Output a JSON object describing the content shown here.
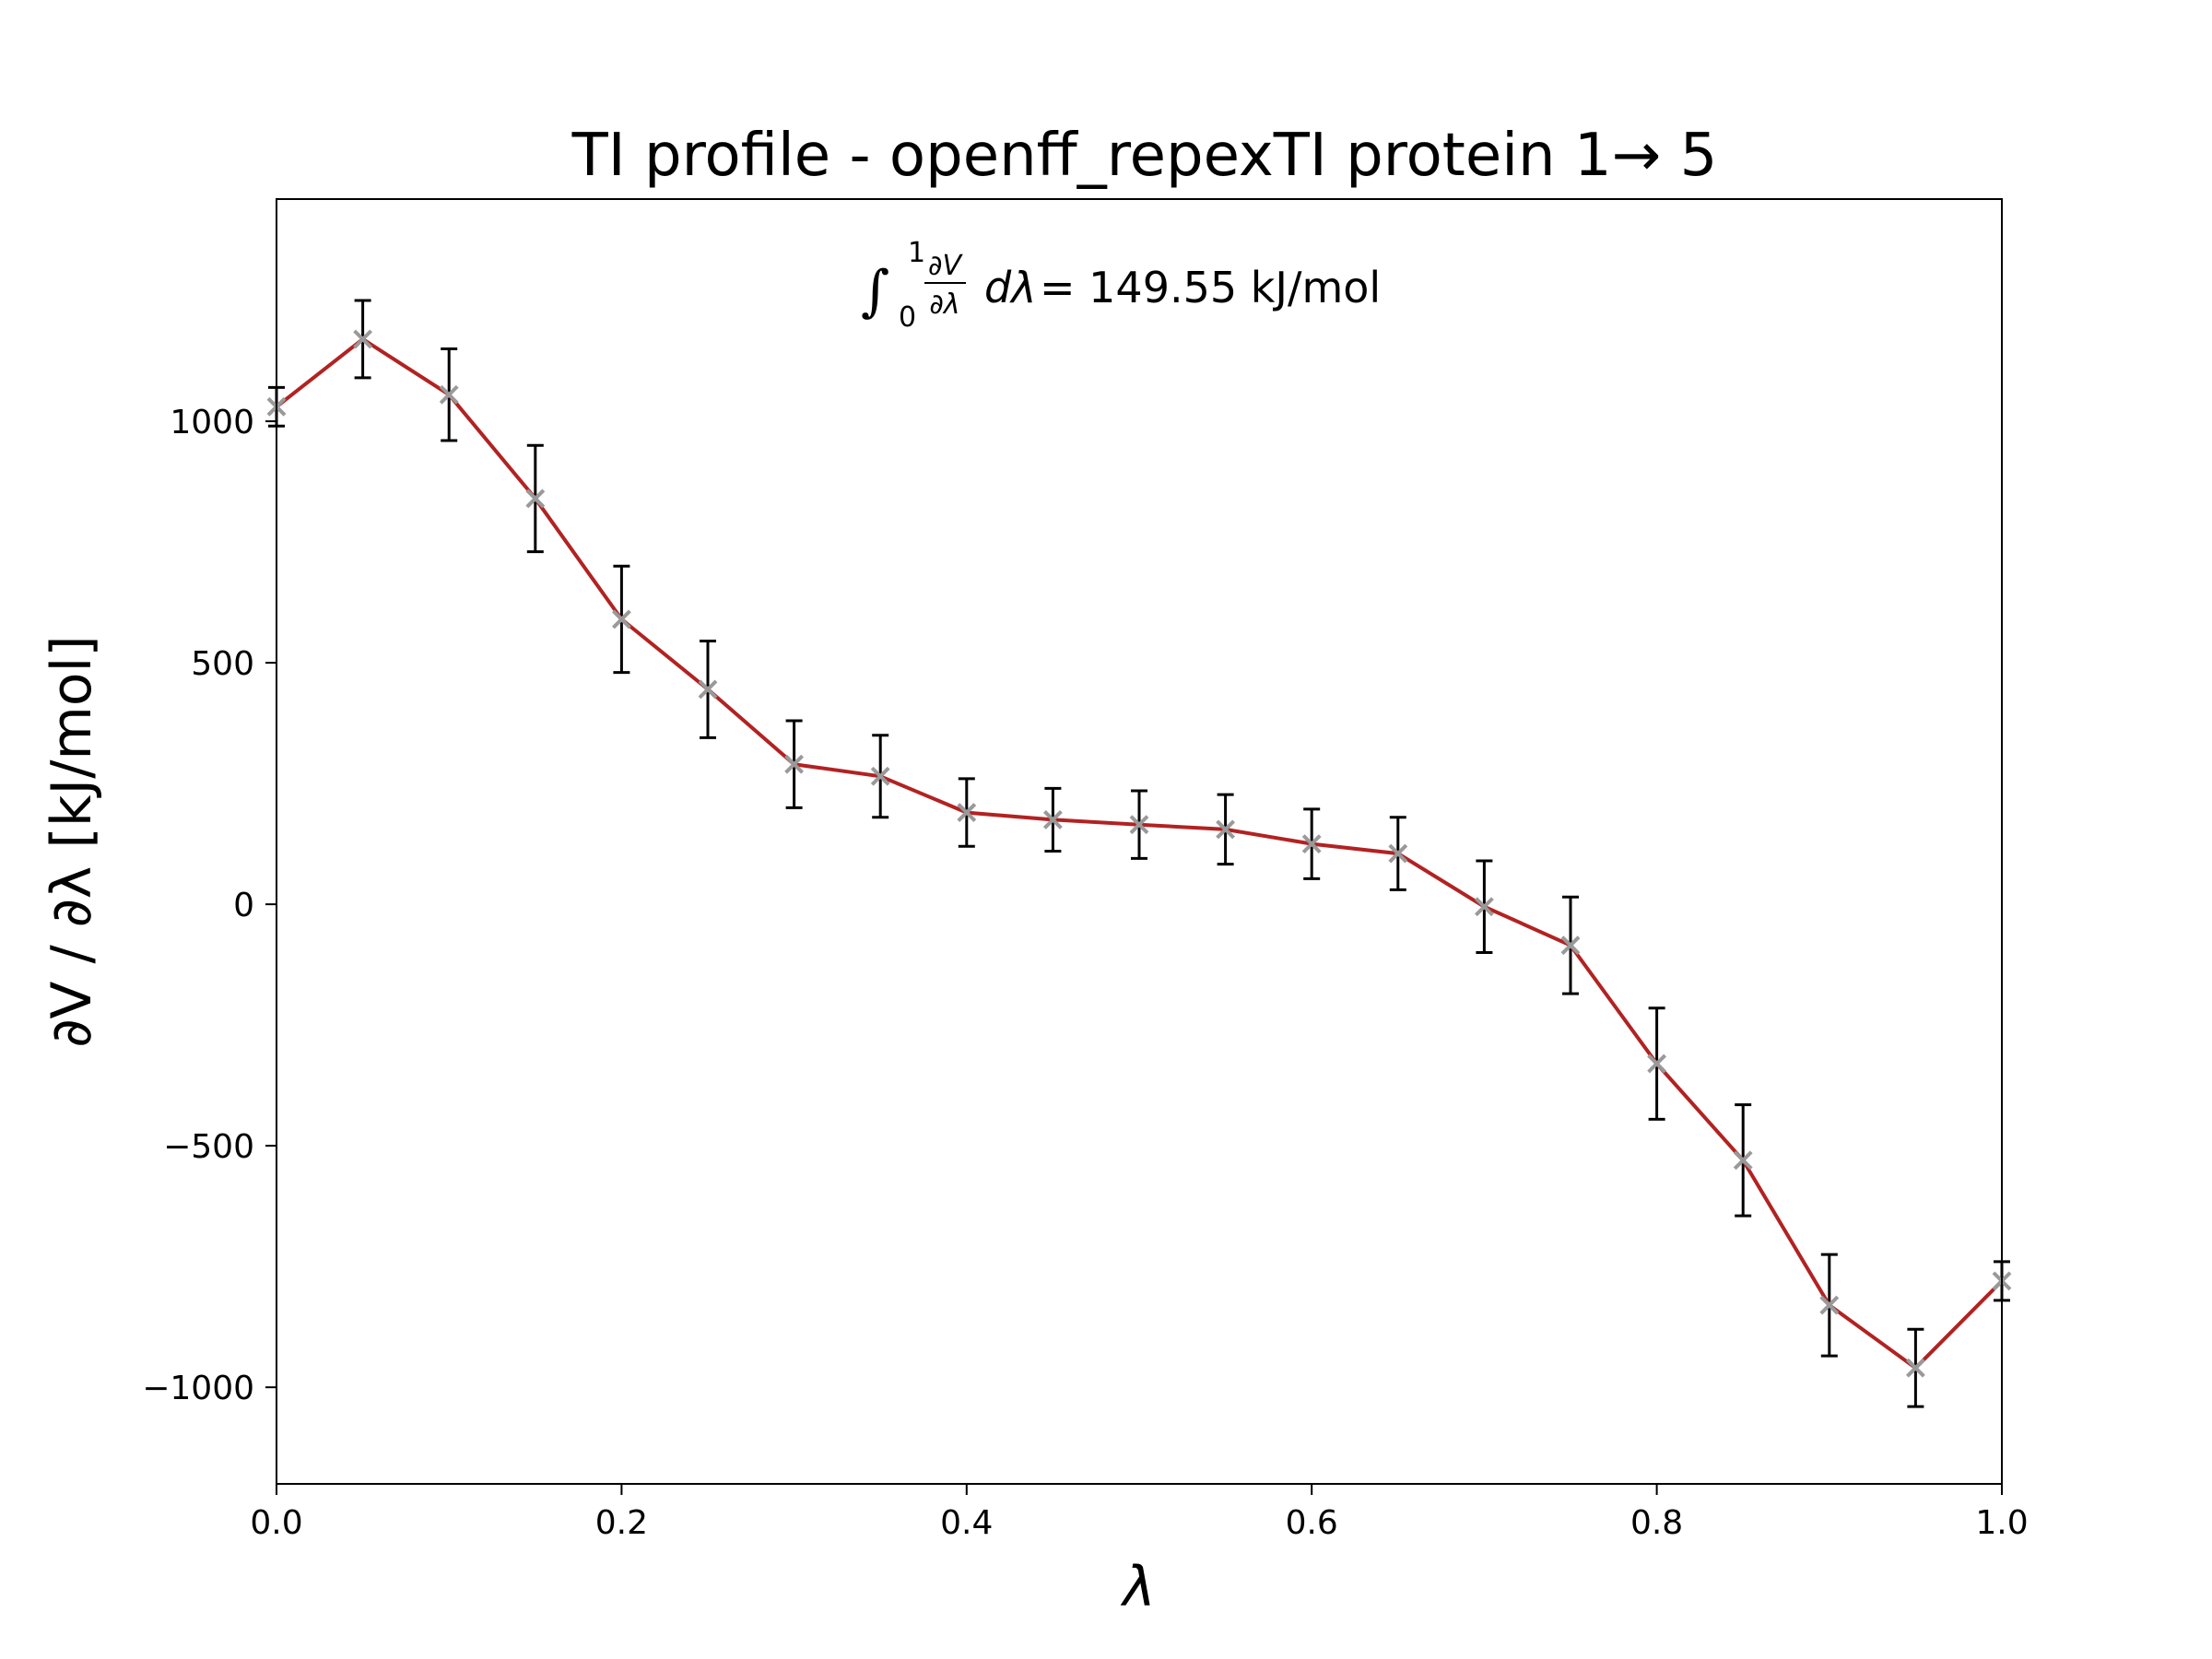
{
  "chart_data": {
    "type": "line",
    "title": "TI profile - openff_repexTI protein 1→ 5",
    "xlabel": "λ",
    "ylabel": "∂V / ∂λ [kJ/mol]",
    "annotation": {
      "integral_upper": "1",
      "integral_lower": "0",
      "frac_num": "∂V",
      "frac_den": "∂λ",
      "differential": "dλ",
      "result": "= 149.55 kJ/mol"
    },
    "xlim": [
      0.0,
      1.0
    ],
    "ylim": [
      -1200,
      1460
    ],
    "x_ticks": [
      0.0,
      0.2,
      0.4,
      0.6,
      0.8,
      1.0
    ],
    "x_tick_labels": [
      "0.0",
      "0.2",
      "0.4",
      "0.6",
      "0.8",
      "1.0"
    ],
    "y_ticks": [
      -1000,
      -500,
      0,
      500,
      1000
    ],
    "y_tick_labels": [
      "−1000",
      "−500",
      "0",
      "500",
      "1000"
    ],
    "grid": false,
    "x": [
      0.0,
      0.05,
      0.1,
      0.15,
      0.2,
      0.25,
      0.3,
      0.35,
      0.4,
      0.45,
      0.5,
      0.55,
      0.6,
      0.65,
      0.7,
      0.75,
      0.8,
      0.85,
      0.9,
      0.95,
      1.0
    ],
    "series": [
      {
        "line_color": "#b22222",
        "marker_color": "#999999",
        "errorbar_color": "#000000",
        "values": [
          1030,
          1170,
          1055,
          840,
          590,
          445,
          290,
          265,
          190,
          175,
          165,
          155,
          125,
          105,
          -5,
          -85,
          -330,
          -530,
          -830,
          -960,
          -780
        ],
        "errors": [
          40,
          80,
          95,
          110,
          110,
          100,
          90,
          85,
          70,
          65,
          70,
          72,
          72,
          75,
          95,
          100,
          115,
          115,
          105,
          80,
          40
        ]
      }
    ]
  },
  "colors": {
    "line": "#b22222",
    "marker": "#999999",
    "errorbar": "#000000",
    "axes": "#000000",
    "background": "#ffffff"
  }
}
